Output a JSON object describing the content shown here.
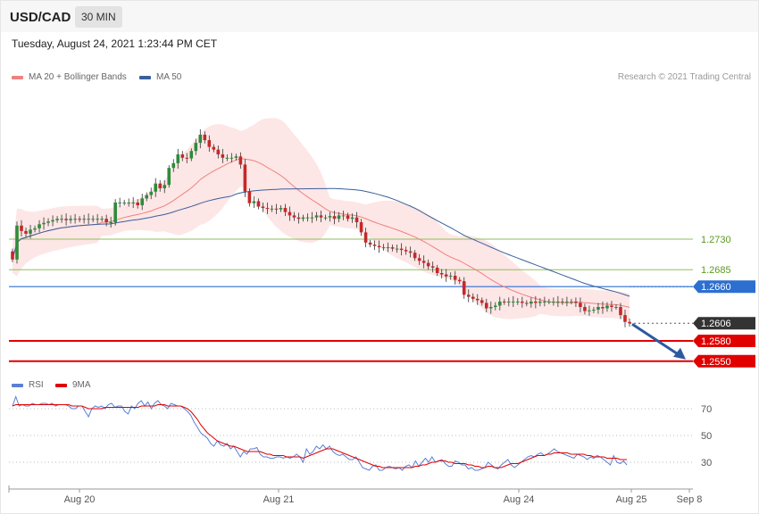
{
  "header": {
    "symbol": "USD/CAD",
    "timeframe": "30 MIN"
  },
  "timestamp": "Tuesday, August 24, 2021 1:23:44 PM CET",
  "copyright": "Research © 2021 Trading Central",
  "colors": {
    "ma20": "#f08080",
    "bands": "#fde0e0",
    "ma50": "#3a5f9c",
    "support": "#e00000",
    "resistance": "#8fbf5a",
    "pivot": "#2c6fd1",
    "last": "#333333",
    "rsi": "#5b7fd6",
    "rsi_ma": "#e00000",
    "arrow": "#2c5aa0"
  },
  "chart_data": [
    {
      "type": "candlestick",
      "title": "",
      "legend": [
        {
          "name": "MA 20 + Bollinger Bands",
          "color": "#f08080"
        },
        {
          "name": "MA 50",
          "color": "#3a5f9c"
        }
      ],
      "x_ticks": [
        "Aug 20",
        "Aug 21",
        "Aug 24",
        "Aug 25",
        "Sep 8"
      ],
      "levels": [
        {
          "value": 1.273,
          "label": "1.2730",
          "kind": "resistance"
        },
        {
          "value": 1.2685,
          "label": "1.2685",
          "kind": "resistance"
        },
        {
          "value": 1.266,
          "label": "1.2660",
          "kind": "pivot"
        },
        {
          "value": 1.2606,
          "label": "1.2606",
          "kind": "last"
        },
        {
          "value": 1.258,
          "label": "1.2580",
          "kind": "support"
        },
        {
          "value": 1.255,
          "label": "1.2550",
          "kind": "support"
        }
      ],
      "forecast": {
        "from": 1.2606,
        "to": 1.255,
        "direction": "down"
      },
      "close": [
        1.27,
        1.275,
        1.2742,
        1.2738,
        1.2744,
        1.2746,
        1.2752,
        1.2754,
        1.2756,
        1.2758,
        1.276,
        1.276,
        1.2758,
        1.276,
        1.276,
        1.2759,
        1.276,
        1.276,
        1.276,
        1.276,
        1.276,
        1.2755,
        1.2755,
        1.2784,
        1.2784,
        1.2784,
        1.2784,
        1.2784,
        1.278,
        1.279,
        1.2795,
        1.28,
        1.2812,
        1.2805,
        1.281,
        1.2835,
        1.2842,
        1.2855,
        1.285,
        1.2849,
        1.286,
        1.2872,
        1.2884,
        1.2876,
        1.2866,
        1.2862,
        1.2855,
        1.285,
        1.285,
        1.285,
        1.2852,
        1.284,
        1.28,
        1.2783,
        1.2786,
        1.2778,
        1.2776,
        1.2775,
        1.2775,
        1.2774,
        1.2776,
        1.277,
        1.2765,
        1.2762,
        1.276,
        1.2762,
        1.2762,
        1.2762,
        1.2765,
        1.2762,
        1.2762,
        1.2764,
        1.276,
        1.2765,
        1.2765,
        1.276,
        1.2762,
        1.2755,
        1.274,
        1.2725,
        1.2722,
        1.272,
        1.2718,
        1.2718,
        1.2718,
        1.2716,
        1.2716,
        1.2714,
        1.2712,
        1.271,
        1.2702,
        1.2698,
        1.2695,
        1.269,
        1.2688,
        1.268,
        1.2678,
        1.2675,
        1.2676,
        1.267,
        1.2668,
        1.2648,
        1.2645,
        1.2642,
        1.264,
        1.2636,
        1.2628,
        1.263,
        1.2632,
        1.2638,
        1.2637,
        1.2638,
        1.2638,
        1.2638,
        1.2636,
        1.2635,
        1.2638,
        1.2636,
        1.2638,
        1.2638,
        1.2638,
        1.2638,
        1.2638,
        1.2638,
        1.2638,
        1.2638,
        1.2636,
        1.263,
        1.2624,
        1.2625,
        1.2626,
        1.263,
        1.2628,
        1.2632,
        1.263,
        1.263,
        1.2618,
        1.2608,
        1.2606
      ]
    },
    {
      "type": "line",
      "title": "",
      "legend": [
        {
          "name": "RSI",
          "color": "#5b7fd6"
        },
        {
          "name": "9MA",
          "color": "#e00000"
        }
      ],
      "y_ticks": [
        70,
        50,
        30
      ],
      "series": [
        {
          "name": "RSI",
          "values": [
            72,
            79,
            72,
            73,
            72,
            72,
            74,
            73,
            73,
            74,
            74,
            73,
            74,
            72,
            73,
            73,
            73,
            72,
            70,
            70,
            72,
            72,
            68,
            64,
            70,
            72,
            71,
            72,
            70,
            73,
            74,
            71,
            72,
            72,
            68,
            66,
            72,
            70,
            74,
            76,
            72,
            75,
            70,
            74,
            76,
            73,
            72,
            70,
            74,
            73,
            72,
            72,
            70,
            68,
            65,
            60,
            56,
            52,
            50,
            48,
            44,
            42,
            46,
            43,
            42,
            44,
            40,
            42,
            38,
            34,
            38,
            36,
            40,
            40,
            41,
            36,
            34,
            34,
            33,
            33,
            34,
            34,
            33,
            34,
            33,
            34,
            36,
            34,
            30,
            40,
            36,
            38,
            42,
            40,
            43,
            40,
            42,
            38,
            36,
            35,
            36,
            34,
            32,
            32,
            34,
            30,
            26,
            25,
            24,
            27,
            28,
            24,
            24,
            26,
            27,
            26,
            25,
            26,
            24,
            27,
            28,
            26,
            31,
            27,
            30,
            33,
            30,
            34,
            30,
            31,
            32,
            29,
            27,
            27,
            31,
            30,
            28,
            28,
            25,
            26,
            24,
            24,
            25,
            26,
            30,
            28,
            26,
            25,
            28,
            30,
            32,
            28,
            26,
            28,
            30,
            32,
            34,
            35,
            34,
            36,
            37,
            35,
            36,
            38,
            40,
            38,
            37,
            36,
            35,
            34,
            33,
            36,
            35,
            34,
            32,
            34,
            33,
            35,
            34,
            32,
            30,
            28,
            35,
            30,
            29,
            31,
            28
          ]
        },
        {
          "name": "9MA",
          "values": [
            72,
            73,
            73,
            73,
            73,
            73,
            73,
            73,
            73,
            73,
            73,
            73,
            73,
            73,
            73,
            73,
            73,
            73,
            72,
            72,
            72,
            72,
            71,
            70,
            70,
            70,
            70,
            70,
            71,
            71,
            71,
            71,
            71,
            71,
            71,
            71,
            71,
            71,
            71,
            72,
            72,
            72,
            72,
            72,
            73,
            73,
            73,
            72,
            72,
            72,
            72,
            72,
            71,
            70,
            68,
            65,
            62,
            58,
            55,
            52,
            50,
            48,
            46,
            45,
            44,
            43,
            42,
            42,
            41,
            40,
            39,
            38,
            38,
            38,
            38,
            38,
            37,
            36,
            36,
            35,
            35,
            35,
            35,
            34,
            34,
            34,
            34,
            34,
            33,
            34,
            35,
            36,
            37,
            38,
            39,
            40,
            40,
            40,
            39,
            38,
            37,
            36,
            35,
            34,
            33,
            32,
            31,
            30,
            29,
            28,
            27,
            27,
            26,
            26,
            26,
            26,
            26,
            26,
            26,
            26,
            26,
            26,
            27,
            27,
            28,
            28,
            29,
            30,
            30,
            31,
            31,
            31,
            30,
            30,
            29,
            29,
            29,
            29,
            28,
            28,
            27,
            27,
            26,
            26,
            27,
            27,
            26,
            26,
            26,
            27,
            28,
            29,
            29,
            29,
            30,
            31,
            32,
            33,
            34,
            35,
            35,
            35,
            36,
            36,
            37,
            37,
            37,
            37,
            37,
            36,
            36,
            36,
            36,
            36,
            35,
            35,
            34,
            34,
            34,
            34,
            33,
            33,
            33,
            33,
            32,
            32,
            32
          ]
        }
      ]
    }
  ]
}
